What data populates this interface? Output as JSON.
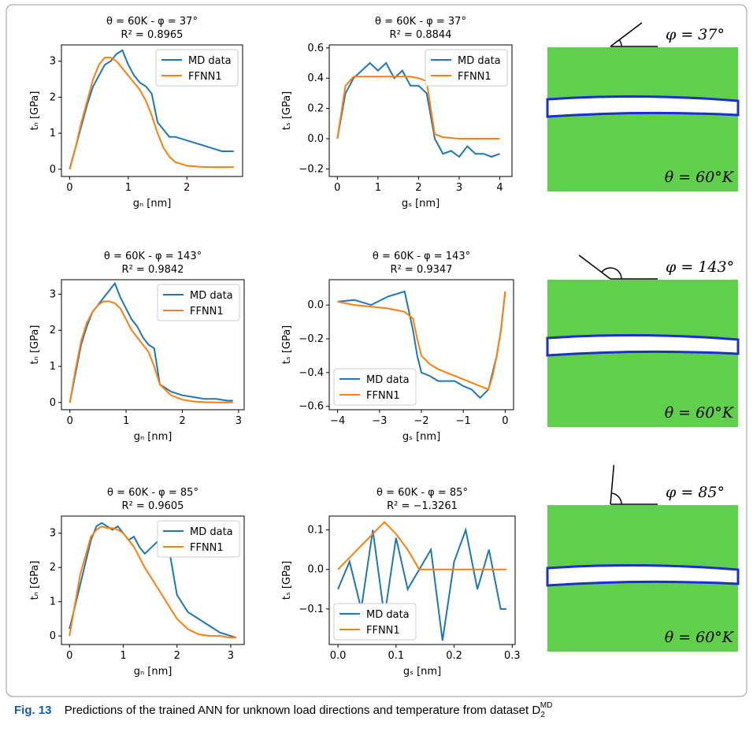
{
  "chart_data": [
    {
      "type": "line",
      "title": "θ = 60K - φ = 37°",
      "subtitle": "R² = 0.8965",
      "x_label": "gₙ [nm]",
      "y_label": "tₙ [GPa]",
      "x": [
        0,
        0.1,
        0.2,
        0.3,
        0.4,
        0.5,
        0.6,
        0.7,
        0.8,
        0.9,
        1.0,
        1.1,
        1.2,
        1.3,
        1.4,
        1.5,
        1.6,
        1.7,
        1.8,
        2.0,
        2.2,
        2.4,
        2.6,
        2.8
      ],
      "series": [
        {
          "name": "MD data",
          "color": "#1f77b4",
          "values": [
            0,
            0.6,
            1.2,
            1.8,
            2.3,
            2.6,
            2.9,
            3.0,
            3.2,
            3.3,
            2.9,
            2.6,
            2.4,
            2.3,
            2.1,
            1.3,
            1.1,
            0.9,
            0.9,
            0.8,
            0.7,
            0.6,
            0.5,
            0.5
          ]
        },
        {
          "name": "FFNN1",
          "color": "#ff7f0e",
          "values": [
            0,
            0.6,
            1.3,
            1.9,
            2.5,
            2.9,
            3.1,
            3.1,
            3.0,
            2.8,
            2.6,
            2.4,
            2.2,
            1.9,
            1.5,
            1.0,
            0.6,
            0.35,
            0.2,
            0.1,
            0.07,
            0.06,
            0.06,
            0.06
          ]
        }
      ],
      "xlim": [
        -0.14,
        2.95
      ],
      "ylim": [
        -0.2,
        3.45
      ],
      "xticks": [
        0,
        1,
        2
      ],
      "yticks": [
        0,
        1,
        2,
        3
      ],
      "legend": "upper right"
    },
    {
      "type": "line",
      "title": "θ = 60K - φ = 37°",
      "subtitle": "R² = 0.8844",
      "x_label": "gₛ [nm]",
      "y_label": "tₛ [GPa]",
      "x": [
        0,
        0.2,
        0.4,
        0.6,
        0.8,
        1.0,
        1.2,
        1.4,
        1.6,
        1.8,
        2.0,
        2.2,
        2.3,
        2.4,
        2.5,
        2.6,
        2.8,
        3.0,
        3.2,
        3.4,
        3.6,
        3.8,
        4.0
      ],
      "series": [
        {
          "name": "MD data",
          "color": "#1f77b4",
          "values": [
            0,
            0.3,
            0.4,
            0.45,
            0.5,
            0.45,
            0.5,
            0.4,
            0.45,
            0.35,
            0.35,
            0.3,
            0.15,
            0.0,
            -0.05,
            -0.1,
            -0.08,
            -0.12,
            -0.05,
            -0.1,
            -0.1,
            -0.12,
            -0.1
          ]
        },
        {
          "name": "FFNN1",
          "color": "#ff7f0e",
          "values": [
            0,
            0.35,
            0.41,
            0.41,
            0.41,
            0.41,
            0.41,
            0.41,
            0.41,
            0.41,
            0.4,
            0.38,
            0.2,
            0.03,
            0.02,
            0.01,
            0.005,
            0,
            0,
            0,
            0,
            0,
            0
          ]
        }
      ],
      "xlim": [
        -0.2,
        4.3
      ],
      "ylim": [
        -0.25,
        0.62
      ],
      "xticks": [
        0,
        1,
        2,
        3,
        4
      ],
      "yticks": [
        {
          "value": -0.2,
          "label": "−0.2"
        },
        {
          "value": 0,
          "label": "0.0"
        },
        0.2,
        0.4,
        0.6
      ],
      "legend": "upper right"
    },
    {
      "type": "line",
      "title": "θ = 60K - φ = 143°",
      "subtitle": "R² = 0.9842",
      "x_label": "gₙ [nm]",
      "y_label": "tₙ [GPa]",
      "x": [
        0,
        0.1,
        0.2,
        0.3,
        0.4,
        0.5,
        0.6,
        0.7,
        0.8,
        0.9,
        1.0,
        1.1,
        1.2,
        1.3,
        1.4,
        1.5,
        1.6,
        1.8,
        2.0,
        2.2,
        2.4,
        2.6,
        2.8,
        2.9
      ],
      "series": [
        {
          "name": "MD data",
          "color": "#1f77b4",
          "values": [
            0,
            0.8,
            1.6,
            2.1,
            2.5,
            2.7,
            2.9,
            3.1,
            3.3,
            2.9,
            2.6,
            2.3,
            2.1,
            1.8,
            1.6,
            1.5,
            0.5,
            0.3,
            0.2,
            0.15,
            0.1,
            0.1,
            0.05,
            0.05
          ]
        },
        {
          "name": "FFNN1",
          "color": "#ff7f0e",
          "values": [
            0,
            0.9,
            1.7,
            2.2,
            2.5,
            2.7,
            2.8,
            2.8,
            2.75,
            2.6,
            2.3,
            2.0,
            1.8,
            1.6,
            1.4,
            1.0,
            0.5,
            0.2,
            0.08,
            0.03,
            0.01,
            0,
            0,
            0
          ]
        }
      ],
      "xlim": [
        -0.15,
        3.1
      ],
      "ylim": [
        -0.2,
        3.4
      ],
      "xticks": [
        0,
        1,
        2,
        3
      ],
      "yticks": [
        0,
        1,
        2,
        3
      ],
      "legend": "upper right"
    },
    {
      "type": "line",
      "title": "θ = 60K - φ = 143°",
      "subtitle": "R² = 0.9347",
      "x_label": "gₛ [nm]",
      "y_label": "tₛ [GPa]",
      "x": [
        -4,
        -3.6,
        -3.2,
        -2.8,
        -2.4,
        -2.2,
        -2.1,
        -2.0,
        -1.8,
        -1.6,
        -1.4,
        -1.2,
        -1.0,
        -0.8,
        -0.6,
        -0.4,
        -0.3,
        -0.2,
        -0.1,
        0
      ],
      "series": [
        {
          "name": "MD data",
          "color": "#1f77b4",
          "values": [
            0.02,
            0.03,
            0.0,
            0.05,
            0.08,
            -0.15,
            -0.3,
            -0.4,
            -0.42,
            -0.45,
            -0.45,
            -0.45,
            -0.48,
            -0.5,
            -0.55,
            -0.5,
            -0.4,
            -0.3,
            -0.15,
            0.08
          ]
        },
        {
          "name": "FFNN1",
          "color": "#ff7f0e",
          "values": [
            0.02,
            0,
            -0.01,
            -0.02,
            -0.04,
            -0.08,
            -0.2,
            -0.3,
            -0.35,
            -0.38,
            -0.4,
            -0.42,
            -0.44,
            -0.46,
            -0.48,
            -0.5,
            -0.42,
            -0.3,
            -0.15,
            0.08
          ]
        }
      ],
      "xlim": [
        -4.2,
        0.2
      ],
      "ylim": [
        -0.62,
        0.15
      ],
      "xticks": [
        {
          "value": -4,
          "label": "−4"
        },
        {
          "value": -3,
          "label": "−3"
        },
        {
          "value": -2,
          "label": "−2"
        },
        {
          "value": -1,
          "label": "−1"
        },
        0
      ],
      "yticks": [
        {
          "value": -0.6,
          "label": "−0.6"
        },
        {
          "value": -0.4,
          "label": "−0.4"
        },
        {
          "value": -0.2,
          "label": "−0.2"
        },
        {
          "value": 0,
          "label": "0.0"
        }
      ],
      "legend": "lower left"
    },
    {
      "type": "line",
      "title": "θ = 60K - φ = 85°",
      "subtitle": "R² = 0.9605",
      "x_label": "gₙ [nm]",
      "y_label": "tₙ [GPa]",
      "x": [
        0,
        0.2,
        0.4,
        0.5,
        0.6,
        0.7,
        0.8,
        0.9,
        1.0,
        1.1,
        1.2,
        1.3,
        1.4,
        1.6,
        1.8,
        2.0,
        2.2,
        2.4,
        2.6,
        2.8,
        3.0,
        3.1
      ],
      "series": [
        {
          "name": "MD data",
          "color": "#1f77b4",
          "values": [
            0.2,
            1.5,
            2.8,
            3.2,
            3.3,
            3.2,
            3.1,
            3.2,
            3.0,
            2.8,
            2.9,
            2.6,
            2.4,
            2.7,
            3.0,
            1.2,
            0.7,
            0.5,
            0.3,
            0.1,
            0,
            -0.05
          ]
        },
        {
          "name": "FFNN1",
          "color": "#ff7f0e",
          "values": [
            0,
            1.8,
            2.9,
            3.1,
            3.2,
            3.15,
            3.15,
            3.1,
            3.0,
            2.8,
            2.6,
            2.3,
            2.0,
            1.5,
            1.0,
            0.5,
            0.2,
            0.05,
            0,
            0,
            -0.05,
            -0.05
          ]
        }
      ],
      "xlim": [
        -0.15,
        3.25
      ],
      "ylim": [
        -0.25,
        3.5
      ],
      "xticks": [
        0,
        1,
        2,
        3
      ],
      "yticks": [
        0,
        1,
        2,
        3
      ],
      "legend": "upper right"
    },
    {
      "type": "line",
      "title": "θ = 60K - φ = 85°",
      "subtitle": "R² = −1.3261",
      "x_label": "gₛ [nm]",
      "y_label": "tₛ [GPa]",
      "x": [
        0,
        0.02,
        0.04,
        0.06,
        0.08,
        0.1,
        0.12,
        0.14,
        0.16,
        0.18,
        0.2,
        0.22,
        0.24,
        0.26,
        0.28,
        0.29
      ],
      "series": [
        {
          "name": "MD data",
          "color": "#1f77b4",
          "values": [
            -0.05,
            0.02,
            -0.1,
            0.1,
            -0.12,
            0.08,
            -0.05,
            0.0,
            0.05,
            -0.18,
            0.02,
            0.1,
            -0.05,
            0.05,
            -0.1,
            -0.1
          ]
        },
        {
          "name": "FFNN1",
          "color": "#ff7f0e",
          "values": [
            0,
            0.03,
            0.06,
            0.09,
            0.12,
            0.09,
            0.05,
            0,
            0,
            0,
            0,
            0,
            0,
            0,
            0,
            0
          ]
        }
      ],
      "xlim": [
        -0.015,
        0.305
      ],
      "ylim": [
        -0.19,
        0.135
      ],
      "xticks": [
        {
          "value": 0,
          "label": "0.0"
        },
        0.1,
        0.2,
        0.3
      ],
      "yticks": [
        {
          "value": -0.1,
          "label": "−0.1"
        },
        {
          "value": 0,
          "label": "0.0"
        },
        0.1
      ],
      "legend": "lower left"
    }
  ],
  "simulations": [
    {
      "angle_label": "φ = 37°",
      "temp_label": "θ = 60°K"
    },
    {
      "angle_label": "φ = 143°",
      "temp_label": "θ = 60°K"
    },
    {
      "angle_label": "φ = 85°",
      "temp_label": "θ = 60°K"
    }
  ],
  "caption": {
    "label": "Fig. 13",
    "text": "Predictions of the trained ANN for unknown load directions and temperature from dataset D",
    "subscript": "2",
    "superscript": "MD"
  }
}
